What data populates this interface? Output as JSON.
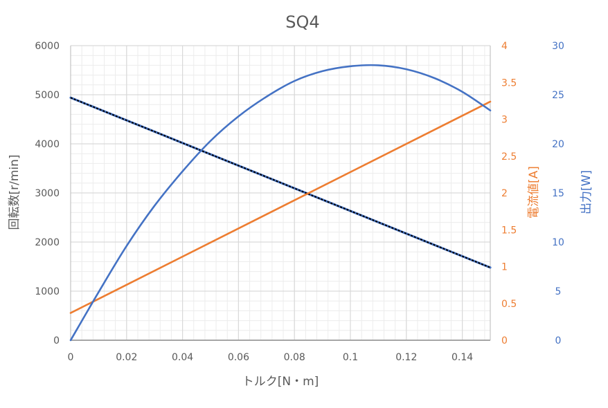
{
  "chart_data": {
    "type": "line",
    "title": "SQ4",
    "xlabel": "トルク[N・m]",
    "ylabel_left": "回転数[r/min]",
    "ylabel_right1": "電流値[A]",
    "ylabel_right2": "出力[W]",
    "xlim": [
      0,
      0.15
    ],
    "ylim_left": [
      0,
      6000
    ],
    "ylim_right1": [
      0,
      4
    ],
    "ylim_right2": [
      0,
      30
    ],
    "x_ticks": [
      "0",
      "0.02",
      "0.04",
      "0.06",
      "0.08",
      "0.1",
      "0.12",
      "0.14"
    ],
    "y_left_ticks": [
      "0",
      "1000",
      "2000",
      "3000",
      "4000",
      "5000",
      "6000"
    ],
    "y_right1_ticks": [
      "0",
      "0.5",
      "1",
      "1.5",
      "2",
      "2.5",
      "3",
      "3.5",
      "4"
    ],
    "y_right2_ticks": [
      "0",
      "5",
      "10",
      "15",
      "20",
      "25",
      "30"
    ],
    "grid": true,
    "colors": {
      "speed": "#000000",
      "current": "#ED7D31",
      "power": "#4472C4",
      "grid": "#d9d9d9",
      "text": "#595959"
    },
    "series": [
      {
        "axis": "left",
        "x": [
          0,
          0.15
        ],
        "values": [
          4940,
          1480
        ]
      },
      {
        "axis": "right1",
        "x": [
          0,
          0.15
        ],
        "values": [
          0.37,
          3.24
        ]
      },
      {
        "axis": "right2",
        "x": [
          0,
          0.01,
          0.02,
          0.03,
          0.04,
          0.05,
          0.06,
          0.07,
          0.08,
          0.09,
          0.1,
          0.11,
          0.12,
          0.13,
          0.14,
          0.15
        ],
        "values": [
          0,
          4.9,
          9.6,
          13.7,
          17.2,
          20.3,
          22.8,
          24.8,
          26.4,
          27.4,
          27.9,
          28.0,
          27.6,
          26.7,
          25.3,
          23.4
        ]
      }
    ]
  }
}
